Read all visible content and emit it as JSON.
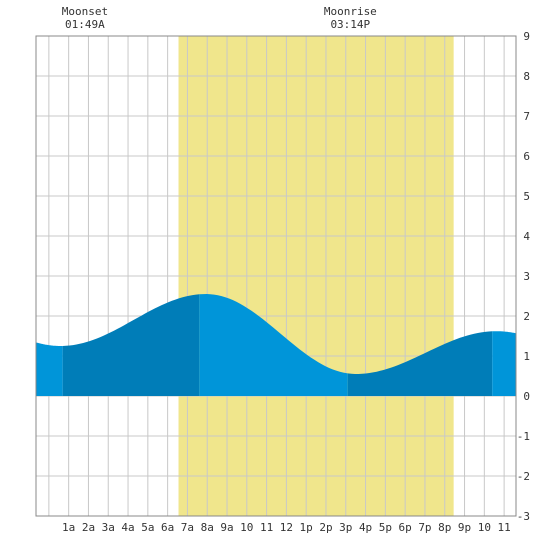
{
  "chart_data": {
    "type": "area",
    "title": "",
    "xlabel": "",
    "ylabel": "",
    "ylim": [
      -3,
      9
    ],
    "xlim": [
      -0.65,
      23.6
    ],
    "grid": true,
    "yticks": [
      -3,
      -2,
      -1,
      0,
      1,
      2,
      3,
      4,
      5,
      6,
      7,
      8,
      9
    ],
    "xtick_labels": [
      "1a",
      "2a",
      "3a",
      "4a",
      "5a",
      "6a",
      "7a",
      "8a",
      "9a",
      "10",
      "11",
      "12",
      "1p",
      "2p",
      "3p",
      "4p",
      "5p",
      "6p",
      "7p",
      "8p",
      "9p",
      "10",
      "11"
    ],
    "daylight": {
      "start_hour": 6.55,
      "end_hour": 20.45
    },
    "annotations": [
      {
        "label": "Moonset",
        "time": "01:49A",
        "hour": 1.82
      },
      {
        "label": "Moonrise",
        "time": "03:14P",
        "hour": 15.23
      }
    ],
    "extremes": [
      {
        "hour": 0.6,
        "height": 1.25,
        "type": "low"
      },
      {
        "hour": 7.95,
        "height": 2.55,
        "type": "high"
      },
      {
        "hour": 15.5,
        "height": 0.55,
        "type": "low"
      },
      {
        "hour": 22.6,
        "height": 1.62,
        "type": "high"
      }
    ],
    "shade_breaks": [
      0.7,
      7.6,
      15.1,
      22.4
    ],
    "colors": {
      "daylight": "#f0e68c",
      "water_light": "#0095d9",
      "water_dark": "#007db8",
      "grid": "#c8c8c8",
      "frame": "#888888"
    }
  }
}
